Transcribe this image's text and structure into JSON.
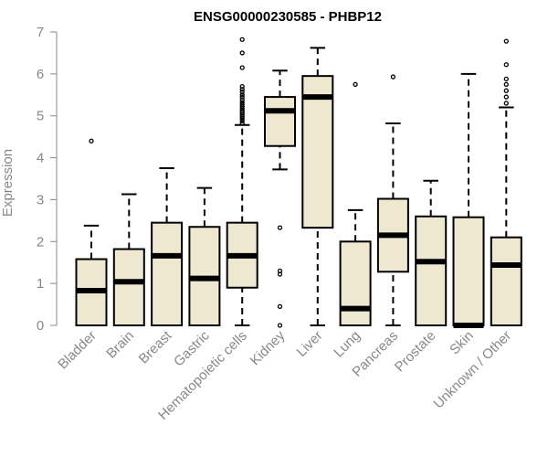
{
  "chart_data": {
    "type": "boxplot",
    "title": "ENSG00000230585 - PHBP12",
    "xlabel": "",
    "ylabel": "Expression",
    "ylim": [
      0,
      7
    ],
    "yticks": [
      0,
      1,
      2,
      3,
      4,
      5,
      6,
      7
    ],
    "box_fill": "#efe8d0",
    "categories": [
      "Bladder",
      "Brain",
      "Breast",
      "Gastric",
      "Hematopoietic cells",
      "Kidney",
      "Liver",
      "Lung",
      "Pancreas",
      "Prostate",
      "Skin",
      "Unknown / Other"
    ],
    "boxes": [
      {
        "name": "Bladder",
        "whisker_low": 0,
        "q1": 0,
        "median": 0.83,
        "q3": 1.58,
        "whisker_high": 2.38,
        "outliers": [
          4.4
        ]
      },
      {
        "name": "Brain",
        "whisker_low": 0,
        "q1": 0,
        "median": 1.04,
        "q3": 1.82,
        "whisker_high": 3.13,
        "outliers": []
      },
      {
        "name": "Breast",
        "whisker_low": 0,
        "q1": 0,
        "median": 1.66,
        "q3": 2.45,
        "whisker_high": 3.75,
        "outliers": []
      },
      {
        "name": "Gastric",
        "whisker_low": 0,
        "q1": 0,
        "median": 1.12,
        "q3": 2.35,
        "whisker_high": 3.28,
        "outliers": []
      },
      {
        "name": "Hematopoietic cells",
        "whisker_low": 0,
        "q1": 0.9,
        "median": 1.66,
        "q3": 2.45,
        "whisker_high": 4.78,
        "outliers": [
          4.82,
          4.88,
          4.93,
          4.98,
          5.03,
          5.08,
          5.12,
          5.17,
          5.22,
          5.27,
          5.32,
          5.38,
          5.45,
          5.5,
          5.57,
          5.63,
          5.7,
          6.15,
          6.5,
          6.82
        ]
      },
      {
        "name": "Kidney",
        "whisker_low": 3.72,
        "q1": 4.28,
        "median": 5.12,
        "q3": 5.45,
        "whisker_high": 6.08,
        "outliers": [
          2.33,
          1.3,
          1.22,
          0.45,
          0.0
        ]
      },
      {
        "name": "Liver",
        "whisker_low": 0,
        "q1": 2.33,
        "median": 5.45,
        "q3": 5.95,
        "whisker_high": 6.62,
        "outliers": []
      },
      {
        "name": "Lung",
        "whisker_low": 0,
        "q1": 0,
        "median": 0.4,
        "q3": 2.0,
        "whisker_high": 2.75,
        "outliers": [
          5.75
        ]
      },
      {
        "name": "Pancreas",
        "whisker_low": 0,
        "q1": 1.28,
        "median": 2.15,
        "q3": 3.02,
        "whisker_high": 4.82,
        "outliers": [
          5.93
        ]
      },
      {
        "name": "Prostate",
        "whisker_low": 0,
        "q1": 0,
        "median": 1.52,
        "q3": 2.6,
        "whisker_high": 3.45,
        "outliers": []
      },
      {
        "name": "Skin",
        "whisker_low": 0,
        "q1": 0,
        "median": 0.0,
        "q3": 2.58,
        "whisker_high": 6.0,
        "outliers": []
      },
      {
        "name": "Unknown / Other",
        "whisker_low": 0,
        "q1": 0,
        "median": 1.44,
        "q3": 2.1,
        "whisker_high": 5.2,
        "outliers": [
          5.3,
          5.45,
          5.6,
          5.75,
          5.88,
          6.22,
          6.78
        ]
      }
    ]
  }
}
